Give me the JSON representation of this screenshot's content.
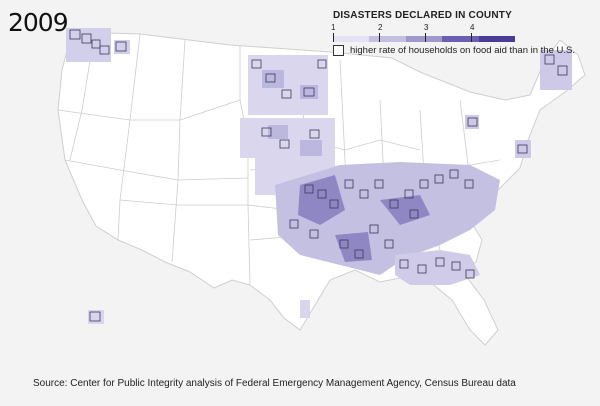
{
  "year": "2009",
  "legend": {
    "title": "DISASTERS DECLARED IN COUNTY",
    "ticks": [
      "1",
      "2",
      "3",
      "4"
    ],
    "colors": [
      "#e4e2f2",
      "#c3bfe0",
      "#9f99cb",
      "#6a5fb0",
      "#4a3c96"
    ],
    "outline_note": "higher rate of households on food aid than in the U.S."
  },
  "source": "Source: Center for Public Integrity analysis of Federal Emergency Management Agency, Census Bureau data",
  "colors": {
    "background": "#f3f3f3",
    "state_border": "#c9c9c9",
    "land": "#ffffff",
    "county_outline": "#3a3a5a"
  }
}
